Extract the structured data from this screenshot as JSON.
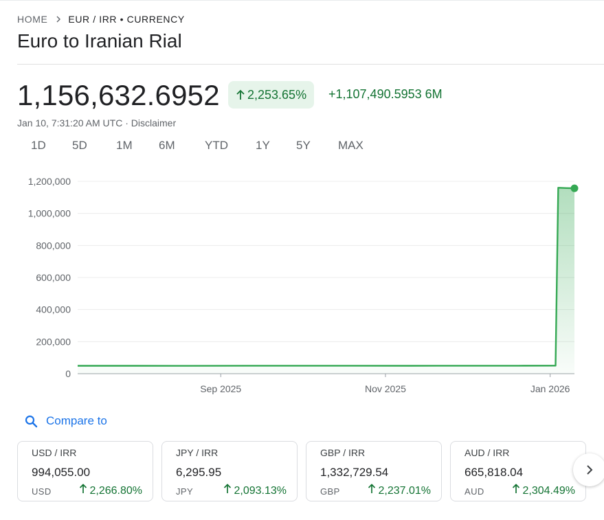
{
  "breadcrumb": {
    "home": "HOME",
    "current": "EUR / IRR • CURRENCY"
  },
  "title": "Euro to Iranian Rial",
  "quote": {
    "price": "1,156,632.6952",
    "percent_change": "2,253.65%",
    "absolute_change": "+1,107,490.5953 6M",
    "timestamp": "Jan 10, 7:31:20 AM UTC",
    "separator": " · ",
    "disclaimer": "Disclaimer"
  },
  "range_tabs": [
    "1D",
    "5D",
    "1M",
    "6M",
    "YTD",
    "1Y",
    "5Y",
    "MAX"
  ],
  "active_range": "6M",
  "chart_data": {
    "type": "area",
    "ylim": [
      0,
      1200000
    ],
    "yticks": [
      0,
      200000,
      400000,
      600000,
      800000,
      1000000,
      1200000
    ],
    "ytick_labels": [
      "0",
      "200,000",
      "400,000",
      "600,000",
      "800,000",
      "1,000,000",
      "1,200,000"
    ],
    "xtick_labels": [
      "Sep 2025",
      "Nov 2025",
      "Jan 2026"
    ],
    "grid": true,
    "series": [
      {
        "color": "#34a853",
        "points": [
          {
            "x": "2025-07-10",
            "y": 49142
          },
          {
            "x": "2025-08-01",
            "y": 49300
          },
          {
            "x": "2025-08-20",
            "y": 48900
          },
          {
            "x": "2025-09-10",
            "y": 49500
          },
          {
            "x": "2025-10-01",
            "y": 49800
          },
          {
            "x": "2025-10-20",
            "y": 49600
          },
          {
            "x": "2025-11-10",
            "y": 49300
          },
          {
            "x": "2025-12-01",
            "y": 49500
          },
          {
            "x": "2025-12-20",
            "y": 49800
          },
          {
            "x": "2026-01-03",
            "y": 50000
          },
          {
            "x": "2026-01-04",
            "y": 1160000
          },
          {
            "x": "2026-01-07",
            "y": 1158000
          },
          {
            "x": "2026-01-10",
            "y": 1156632.6952
          }
        ]
      }
    ]
  },
  "compare": {
    "label": "Compare to",
    "icon": "search-icon"
  },
  "related": [
    {
      "pair": "USD / IRR",
      "value": "994,055.00",
      "base": "USD",
      "change": "2,266.80%"
    },
    {
      "pair": "JPY / IRR",
      "value": "6,295.95",
      "base": "JPY",
      "change": "2,093.13%"
    },
    {
      "pair": "GBP / IRR",
      "value": "1,332,729.54",
      "base": "GBP",
      "change": "2,237.01%"
    },
    {
      "pair": "AUD / IRR",
      "value": "665,818.04",
      "base": "AUD",
      "change": "2,304.49%"
    }
  ],
  "colors": {
    "positive": "#137333",
    "positive_bg": "#e6f4ea",
    "accent": "#1a73e8",
    "line": "#34a853"
  },
  "icons": {
    "up_arrow": "arrow-up-icon",
    "breadcrumb_sep": "chevron-right-icon",
    "next": "chevron-right-icon"
  }
}
